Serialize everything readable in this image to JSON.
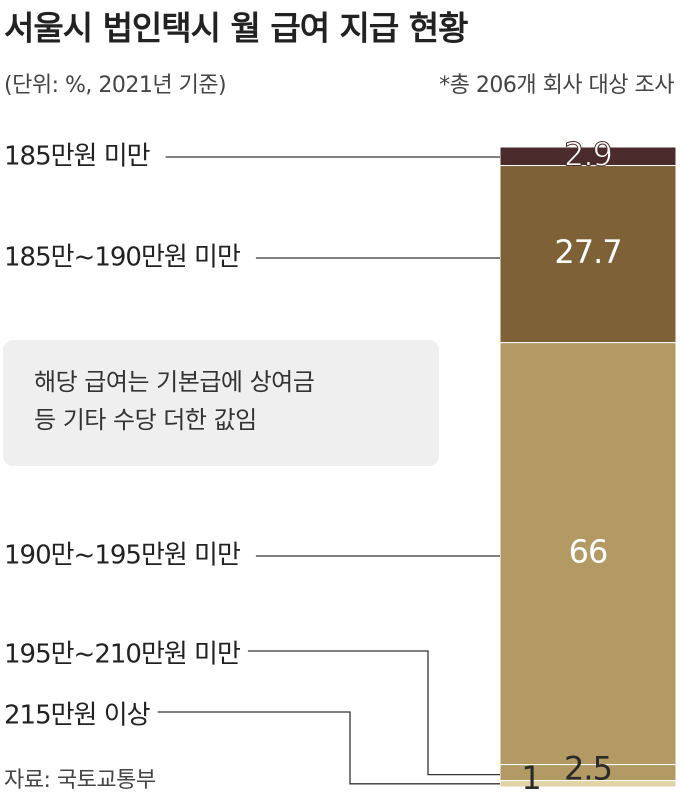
{
  "chart_data": {
    "type": "bar",
    "title": "서울시 법인택시 월 급여 지급 현황",
    "subtitle": "(단위: %, 2021년 기준)",
    "note": "*총 206개 회사 대상 조사",
    "annotation": [
      "해당 급여는 기본급에 상여금",
      "등 기타 수당 더한 값임"
    ],
    "source": "자료: 국토교통부",
    "categories": [
      "185만원 미만",
      "185만~190만원 미만",
      "190만~195만원 미만",
      "195만~210만원 미만",
      "215만원 이상"
    ],
    "values": [
      2.9,
      27.7,
      66,
      2.5,
      1
    ],
    "colors": [
      "#4b2b2b",
      "#7e6137",
      "#b39a64",
      "#b39a64",
      "#e2d3a6"
    ]
  }
}
